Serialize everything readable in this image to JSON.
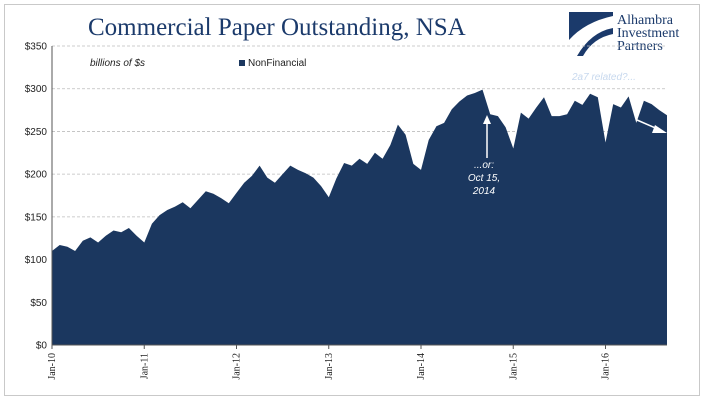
{
  "header": {
    "title": "Commercial Paper Outstanding, NSA"
  },
  "logo": {
    "line1": "Alhambra",
    "line2": "Investment",
    "line3": "Partners"
  },
  "colors": {
    "series": "#1b375f",
    "title": "#1b3a6b",
    "grid": "#bdbdbd"
  },
  "chart_data": {
    "type": "area",
    "title": "Commercial Paper Outstanding, NSA",
    "unit_note": "billions of $s",
    "xlabel": "",
    "ylabel": "",
    "ylim": [
      0,
      350
    ],
    "y_ticks": [
      "$0",
      "$50",
      "$100",
      "$150",
      "$200",
      "$250",
      "$300",
      "$350"
    ],
    "y_tick_values": [
      0,
      50,
      100,
      150,
      200,
      250,
      300,
      350
    ],
    "xlim": [
      "2010-01",
      "2016-09"
    ],
    "x_ticks": [
      "Jan-10",
      "Jan-11",
      "Jan-12",
      "Jan-13",
      "Jan-14",
      "Jan-15",
      "Jan-16"
    ],
    "grid": "horizontal dashed",
    "legend": {
      "position": "top-center"
    },
    "series": [
      {
        "name": "NonFinancial",
        "color": "#1b375f",
        "x": [
          "2010-01",
          "2010-02",
          "2010-03",
          "2010-04",
          "2010-05",
          "2010-06",
          "2010-07",
          "2010-08",
          "2010-09",
          "2010-10",
          "2010-11",
          "2010-12",
          "2011-01",
          "2011-02",
          "2011-03",
          "2011-04",
          "2011-05",
          "2011-06",
          "2011-07",
          "2011-08",
          "2011-09",
          "2011-10",
          "2011-11",
          "2011-12",
          "2012-01",
          "2012-02",
          "2012-03",
          "2012-04",
          "2012-05",
          "2012-06",
          "2012-07",
          "2012-08",
          "2012-09",
          "2012-10",
          "2012-11",
          "2012-12",
          "2013-01",
          "2013-02",
          "2013-03",
          "2013-04",
          "2013-05",
          "2013-06",
          "2013-07",
          "2013-08",
          "2013-09",
          "2013-10",
          "2013-11",
          "2013-12",
          "2014-01",
          "2014-02",
          "2014-03",
          "2014-04",
          "2014-05",
          "2014-06",
          "2014-07",
          "2014-08",
          "2014-09",
          "2014-10",
          "2014-11",
          "2014-12",
          "2015-01",
          "2015-02",
          "2015-03",
          "2015-04",
          "2015-05",
          "2015-06",
          "2015-07",
          "2015-08",
          "2015-09",
          "2015-10",
          "2015-11",
          "2015-12",
          "2016-01",
          "2016-02",
          "2016-03",
          "2016-04",
          "2016-05",
          "2016-06",
          "2016-07",
          "2016-08",
          "2016-09"
        ],
        "values": [
          110,
          117,
          115,
          110,
          122,
          126,
          120,
          128,
          134,
          132,
          137,
          128,
          120,
          142,
          152,
          158,
          162,
          167,
          160,
          170,
          180,
          177,
          172,
          166,
          178,
          190,
          198,
          210,
          196,
          190,
          200,
          210,
          205,
          201,
          196,
          186,
          173,
          195,
          213,
          210,
          218,
          212,
          225,
          218,
          234,
          258,
          246,
          212,
          205,
          240,
          256,
          260,
          276,
          285,
          292,
          295,
          299,
          270,
          268,
          255,
          230,
          272,
          265,
          278,
          290,
          268,
          268,
          270,
          286,
          281,
          294,
          290,
          237,
          282,
          278,
          291,
          260,
          286,
          282,
          275,
          269
        ]
      }
    ],
    "annotations": [
      {
        "text_lines": [
          "...or:",
          "Oct 15,",
          "2014"
        ],
        "points_to": "2014-10"
      },
      {
        "text_lines": [
          "2a7 related?..."
        ],
        "points_to": "2016-09"
      }
    ]
  }
}
